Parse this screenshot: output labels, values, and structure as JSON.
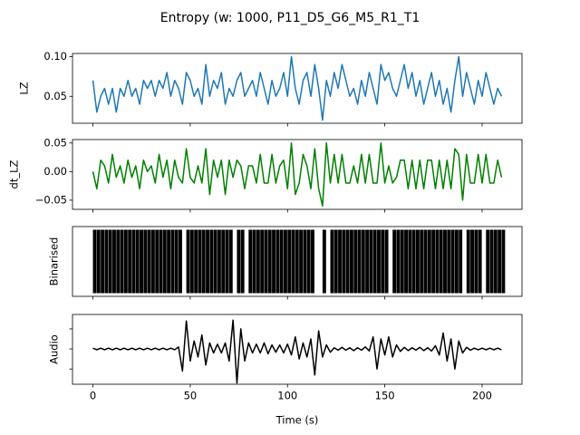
{
  "title": "Entropy (w: 1000, P11_D5_G6_M5_R1_T1",
  "chart_data": [
    {
      "type": "line",
      "ylabel": "LZ",
      "color": "#1f77b4",
      "x": [
        0,
        2,
        4,
        6,
        8,
        10,
        12,
        14,
        16,
        18,
        20,
        22,
        24,
        26,
        28,
        30,
        32,
        34,
        36,
        38,
        40,
        42,
        44,
        46,
        48,
        50,
        52,
        54,
        56,
        58,
        60,
        62,
        64,
        66,
        68,
        70,
        72,
        74,
        76,
        78,
        80,
        82,
        84,
        86,
        88,
        90,
        92,
        94,
        96,
        98,
        100,
        102,
        104,
        106,
        108,
        110,
        112,
        114,
        116,
        118,
        120,
        122,
        124,
        126,
        128,
        130,
        132,
        134,
        136,
        138,
        140,
        142,
        144,
        146,
        148,
        150,
        152,
        154,
        156,
        158,
        160,
        162,
        164,
        166,
        168,
        170,
        172,
        174,
        176,
        178,
        180,
        182,
        184,
        186,
        188,
        190,
        192,
        194,
        196,
        198,
        200,
        202,
        204,
        206,
        208,
        210
      ],
      "values": [
        0.07,
        0.03,
        0.05,
        0.06,
        0.04,
        0.06,
        0.03,
        0.06,
        0.05,
        0.07,
        0.05,
        0.06,
        0.04,
        0.07,
        0.06,
        0.07,
        0.05,
        0.07,
        0.06,
        0.08,
        0.05,
        0.07,
        0.06,
        0.04,
        0.08,
        0.07,
        0.05,
        0.06,
        0.04,
        0.09,
        0.05,
        0.07,
        0.06,
        0.08,
        0.04,
        0.06,
        0.05,
        0.07,
        0.08,
        0.05,
        0.06,
        0.07,
        0.05,
        0.08,
        0.06,
        0.04,
        0.07,
        0.05,
        0.06,
        0.08,
        0.05,
        0.1,
        0.06,
        0.04,
        0.07,
        0.08,
        0.05,
        0.09,
        0.06,
        0.02,
        0.07,
        0.05,
        0.08,
        0.06,
        0.09,
        0.07,
        0.05,
        0.06,
        0.04,
        0.07,
        0.05,
        0.08,
        0.06,
        0.04,
        0.09,
        0.07,
        0.08,
        0.06,
        0.05,
        0.07,
        0.09,
        0.06,
        0.08,
        0.05,
        0.07,
        0.04,
        0.06,
        0.08,
        0.05,
        0.07,
        0.04,
        0.06,
        0.03,
        0.07,
        0.1,
        0.05,
        0.08,
        0.06,
        0.04,
        0.07,
        0.05,
        0.08,
        0.06,
        0.04,
        0.06,
        0.05
      ],
      "xlim": [
        -10.5,
        220.5
      ],
      "xticks": [
        0,
        50,
        100,
        150,
        200
      ],
      "xtick_labels": false,
      "ylim": [
        0.016,
        0.104
      ],
      "yticks": [
        0.05,
        {
          "value": 0.1,
          "label": "0.10"
        }
      ]
    },
    {
      "type": "line",
      "ylabel": "dt_LZ",
      "color": "#008000",
      "x": [
        0,
        2,
        4,
        6,
        8,
        10,
        12,
        14,
        16,
        18,
        20,
        22,
        24,
        26,
        28,
        30,
        32,
        34,
        36,
        38,
        40,
        42,
        44,
        46,
        48,
        50,
        52,
        54,
        56,
        58,
        60,
        62,
        64,
        66,
        68,
        70,
        72,
        74,
        76,
        78,
        80,
        82,
        84,
        86,
        88,
        90,
        92,
        94,
        96,
        98,
        100,
        102,
        104,
        106,
        108,
        110,
        112,
        114,
        116,
        118,
        120,
        122,
        124,
        126,
        128,
        130,
        132,
        134,
        136,
        138,
        140,
        142,
        144,
        146,
        148,
        150,
        152,
        154,
        156,
        158,
        160,
        162,
        164,
        166,
        168,
        170,
        172,
        174,
        176,
        178,
        180,
        182,
        184,
        186,
        188,
        190,
        192,
        194,
        196,
        198,
        200,
        202,
        204,
        206,
        208,
        210
      ],
      "values": [
        0.0,
        -0.03,
        0.02,
        0.01,
        -0.02,
        0.03,
        -0.01,
        0.01,
        -0.02,
        0.02,
        -0.01,
        0.01,
        -0.03,
        0.02,
        0.0,
        0.01,
        -0.02,
        0.03,
        -0.01,
        0.02,
        -0.03,
        0.02,
        -0.01,
        -0.02,
        0.04,
        -0.01,
        -0.02,
        0.01,
        -0.02,
        0.04,
        -0.04,
        0.02,
        -0.01,
        0.02,
        -0.04,
        0.02,
        -0.01,
        0.02,
        0.01,
        -0.03,
        0.01,
        0.01,
        -0.02,
        0.03,
        -0.02,
        -0.02,
        0.03,
        -0.02,
        0.01,
        0.02,
        -0.03,
        0.05,
        -0.04,
        -0.02,
        0.03,
        0.01,
        -0.03,
        0.04,
        -0.03,
        -0.06,
        0.05,
        -0.02,
        0.03,
        -0.02,
        0.03,
        -0.02,
        -0.02,
        0.01,
        -0.02,
        0.03,
        -0.02,
        0.03,
        -0.02,
        -0.02,
        0.05,
        -0.02,
        0.01,
        -0.02,
        -0.01,
        0.02,
        0.02,
        -0.03,
        0.02,
        -0.03,
        0.02,
        -0.03,
        0.02,
        0.02,
        -0.03,
        0.02,
        -0.03,
        0.02,
        -0.03,
        0.04,
        0.03,
        -0.05,
        0.03,
        -0.02,
        -0.02,
        0.03,
        -0.02,
        0.03,
        -0.02,
        -0.02,
        0.02,
        -0.01
      ],
      "xlim": [
        -10.5,
        220.5
      ],
      "xticks": [
        0,
        50,
        100,
        150,
        200
      ],
      "xtick_labels": false,
      "ylim": [
        -0.066,
        0.056
      ],
      "yticks": [
        {
          "value": -0.05,
          "label": "−0.05"
        },
        {
          "value": 0,
          "label": "0.00"
        },
        0.05
      ]
    },
    {
      "type": "bar",
      "ylabel": "Binarised",
      "color": "#000000",
      "x": [
        0,
        2,
        4,
        6,
        8,
        10,
        12,
        14,
        16,
        18,
        20,
        22,
        24,
        26,
        28,
        30,
        32,
        34,
        36,
        38,
        40,
        42,
        44,
        46,
        48,
        50,
        52,
        54,
        56,
        58,
        60,
        62,
        64,
        66,
        68,
        70,
        72,
        74,
        76,
        78,
        80,
        82,
        84,
        86,
        88,
        90,
        92,
        94,
        96,
        98,
        100,
        102,
        104,
        106,
        108,
        110,
        112,
        114,
        116,
        118,
        120,
        122,
        124,
        126,
        128,
        130,
        132,
        134,
        136,
        138,
        140,
        142,
        144,
        146,
        148,
        150,
        152,
        154,
        156,
        158,
        160,
        162,
        164,
        166,
        168,
        170,
        172,
        174,
        176,
        178,
        180,
        182,
        184,
        186,
        188,
        190,
        192,
        194,
        196,
        198,
        200,
        202,
        204,
        206,
        208,
        210
      ],
      "values": [
        1,
        1,
        1,
        1,
        1,
        1,
        1,
        1,
        1,
        1,
        1,
        1,
        1,
        1,
        1,
        1,
        1,
        1,
        1,
        1,
        1,
        1,
        1,
        0,
        1,
        1,
        1,
        1,
        1,
        1,
        1,
        1,
        1,
        1,
        1,
        1,
        0,
        1,
        1,
        0,
        1,
        1,
        1,
        1,
        1,
        1,
        1,
        1,
        1,
        1,
        1,
        1,
        1,
        1,
        1,
        1,
        1,
        0,
        0,
        1,
        0,
        1,
        1,
        1,
        1,
        1,
        1,
        1,
        1,
        1,
        1,
        1,
        1,
        1,
        1,
        1,
        0,
        1,
        1,
        1,
        1,
        1,
        1,
        1,
        1,
        1,
        1,
        1,
        1,
        1,
        1,
        1,
        1,
        1,
        1,
        0,
        1,
        1,
        1,
        1,
        0,
        1,
        1,
        1,
        1,
        1
      ],
      "xlim": [
        -10.5,
        220.5
      ],
      "xticks": [
        0,
        50,
        100,
        150,
        200
      ],
      "xtick_labels": false,
      "ylim": [
        -0.05,
        1.05
      ]
    },
    {
      "type": "line",
      "ylabel": "Audio",
      "color": "#000000",
      "xlabel": "Time (s)",
      "x": [
        0,
        2,
        4,
        6,
        8,
        10,
        12,
        14,
        16,
        18,
        20,
        22,
        24,
        26,
        28,
        30,
        32,
        34,
        36,
        38,
        40,
        42,
        44,
        46,
        48,
        50,
        52,
        54,
        56,
        58,
        60,
        62,
        64,
        66,
        68,
        70,
        72,
        74,
        76,
        78,
        80,
        82,
        84,
        86,
        88,
        90,
        92,
        94,
        96,
        98,
        100,
        102,
        104,
        106,
        108,
        110,
        112,
        114,
        116,
        118,
        120,
        122,
        124,
        126,
        128,
        130,
        132,
        134,
        136,
        138,
        140,
        142,
        144,
        146,
        148,
        150,
        152,
        154,
        156,
        158,
        160,
        162,
        164,
        166,
        168,
        170,
        172,
        174,
        176,
        178,
        180,
        182,
        184,
        186,
        188,
        190,
        192,
        194,
        196,
        198,
        200,
        202,
        204,
        206,
        208,
        210
      ],
      "values": [
        0.02,
        -0.02,
        0.02,
        -0.02,
        0.02,
        -0.02,
        0.02,
        -0.02,
        0.02,
        -0.02,
        0.02,
        -0.02,
        0.02,
        -0.02,
        0.02,
        -0.02,
        0.02,
        -0.02,
        0.02,
        -0.02,
        0.02,
        -0.02,
        0.05,
        -0.55,
        0.7,
        -0.3,
        0.2,
        -0.2,
        0.35,
        -0.4,
        0.15,
        -0.1,
        0.12,
        -0.1,
        0.15,
        -0.3,
        0.72,
        -0.85,
        0.5,
        -0.3,
        0.15,
        -0.1,
        0.12,
        -0.1,
        0.15,
        -0.12,
        0.1,
        -0.08,
        0.1,
        -0.1,
        0.12,
        -0.15,
        0.3,
        -0.25,
        0.15,
        -0.2,
        0.25,
        -0.65,
        0.45,
        -0.2,
        0.1,
        -0.08,
        0.03,
        -0.03,
        0.04,
        -0.03,
        0.03,
        -0.04,
        0.03,
        -0.03,
        0.05,
        -0.05,
        0.3,
        -0.5,
        0.25,
        -0.15,
        0.3,
        -0.2,
        0.1,
        -0.06,
        0.04,
        -0.04,
        0.03,
        -0.03,
        0.04,
        -0.04,
        0.03,
        -0.05,
        0.08,
        -0.15,
        0.4,
        -0.3,
        0.25,
        -0.5,
        0.2,
        -0.1,
        0.04,
        -0.03,
        0.02,
        -0.02,
        0.02,
        -0.02,
        0.02,
        -0.02,
        0.02,
        -0.02
      ],
      "xlim": [
        -10.5,
        220.5
      ],
      "xticks": [
        0,
        50,
        100,
        150,
        200
      ],
      "ylim": [
        -0.88,
        0.86
      ],
      "yticks": [
        -0.5,
        0,
        0.5
      ],
      "ytick_labels": false
    }
  ]
}
